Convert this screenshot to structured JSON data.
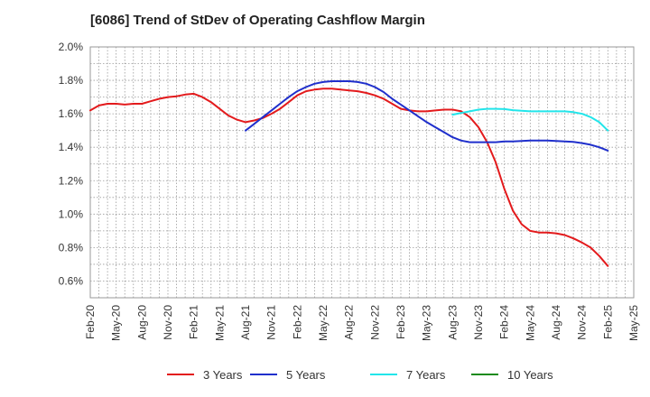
{
  "chart_data": {
    "type": "line",
    "title": "[6086]  Trend of StDev of Operating Cashflow Margin",
    "xlabel": "",
    "ylabel": "",
    "ylim": [
      0.5,
      2.0
    ],
    "yticks": [
      "0.6%",
      "0.8%",
      "1.0%",
      "1.2%",
      "1.4%",
      "1.6%",
      "1.8%",
      "2.0%"
    ],
    "ytick_values": [
      0.6,
      0.8,
      1.0,
      1.2,
      1.4,
      1.6,
      1.8,
      2.0
    ],
    "x_tick_labels": [
      "Feb-20",
      "May-20",
      "Aug-20",
      "Nov-20",
      "Feb-21",
      "May-21",
      "Aug-21",
      "Nov-21",
      "Feb-22",
      "May-22",
      "Aug-22",
      "Nov-22",
      "Feb-23",
      "May-23",
      "Aug-23",
      "Nov-23",
      "Feb-24",
      "May-24",
      "Aug-24",
      "Nov-24",
      "Feb-25",
      "May-25"
    ],
    "grid": true,
    "legend_placement": "bottom",
    "series": [
      {
        "name": "3 Years",
        "color": "#e31a1c",
        "x": [
          "Feb-20",
          "Mar-20",
          "Apr-20",
          "May-20",
          "Jun-20",
          "Jul-20",
          "Aug-20",
          "Sep-20",
          "Oct-20",
          "Nov-20",
          "Dec-20",
          "Jan-21",
          "Feb-21",
          "Mar-21",
          "Apr-21",
          "May-21",
          "Jun-21",
          "Jul-21",
          "Aug-21",
          "Sep-21",
          "Oct-21",
          "Nov-21",
          "Dec-21",
          "Jan-22",
          "Feb-22",
          "Mar-22",
          "Apr-22",
          "May-22",
          "Jun-22",
          "Jul-22",
          "Aug-22",
          "Sep-22",
          "Oct-22",
          "Nov-22",
          "Dec-22",
          "Jan-23",
          "Feb-23",
          "Mar-23",
          "Apr-23",
          "May-23",
          "Jun-23",
          "Jul-23",
          "Aug-23",
          "Sep-23",
          "Oct-23",
          "Nov-23",
          "Dec-23",
          "Jan-24",
          "Feb-24",
          "Mar-24",
          "Apr-24",
          "May-24",
          "Jun-24",
          "Jul-24",
          "Aug-24",
          "Sep-24",
          "Oct-24",
          "Nov-24",
          "Dec-24",
          "Jan-25",
          "Feb-25"
        ],
        "values": [
          1.62,
          1.65,
          1.66,
          1.66,
          1.655,
          1.66,
          1.66,
          1.675,
          1.69,
          1.7,
          1.705,
          1.715,
          1.72,
          1.7,
          1.67,
          1.63,
          1.59,
          1.565,
          1.55,
          1.56,
          1.575,
          1.6,
          1.63,
          1.67,
          1.71,
          1.735,
          1.745,
          1.75,
          1.75,
          1.745,
          1.74,
          1.735,
          1.725,
          1.71,
          1.69,
          1.66,
          1.63,
          1.62,
          1.615,
          1.615,
          1.62,
          1.625,
          1.625,
          1.615,
          1.58,
          1.52,
          1.43,
          1.31,
          1.15,
          1.02,
          0.94,
          0.9,
          0.89,
          0.89,
          0.885,
          0.875,
          0.855,
          0.83,
          0.8,
          0.75,
          0.69
        ]
      },
      {
        "name": "5 Years",
        "color": "#1f2fcc",
        "x": [
          "Feb-21",
          "Mar-21",
          "Apr-21",
          "May-21",
          "Jun-21",
          "Jul-21",
          "Aug-21",
          "Sep-21",
          "Oct-21",
          "Nov-21",
          "Dec-21",
          "Jan-22",
          "Feb-22",
          "Mar-22",
          "Apr-22",
          "May-22",
          "Jun-22",
          "Jul-22",
          "Aug-22",
          "Sep-22",
          "Oct-22",
          "Nov-22",
          "Dec-22",
          "Jan-23",
          "Feb-23",
          "Mar-23",
          "Apr-23",
          "May-23",
          "Jun-23",
          "Jul-23",
          "Aug-23",
          "Sep-23",
          "Oct-23",
          "Nov-23",
          "Dec-23",
          "Jan-24",
          "Feb-24",
          "Mar-24",
          "Apr-24",
          "May-24",
          "Jun-24",
          "Jul-24",
          "Aug-24",
          "Sep-24",
          "Oct-24",
          "Nov-24",
          "Dec-24",
          "Jan-25",
          "Feb-25"
        ],
        "values": [
          null,
          null,
          null,
          null,
          null,
          null,
          1.5,
          1.54,
          1.58,
          1.62,
          1.66,
          1.7,
          1.735,
          1.76,
          1.78,
          1.79,
          1.795,
          1.795,
          1.795,
          1.79,
          1.78,
          1.76,
          1.73,
          1.69,
          1.655,
          1.62,
          1.585,
          1.55,
          1.52,
          1.49,
          1.46,
          1.44,
          1.43,
          1.43,
          1.43,
          1.43,
          1.435,
          1.435,
          1.437,
          1.44,
          1.44,
          1.44,
          1.438,
          1.435,
          1.432,
          1.425,
          1.415,
          1.4,
          1.38
        ]
      },
      {
        "name": "7 Years",
        "color": "#22e5ea",
        "x": [
          "Aug-23",
          "Sep-23",
          "Oct-23",
          "Nov-23",
          "Dec-23",
          "Jan-24",
          "Feb-24",
          "Mar-24",
          "Apr-24",
          "May-24",
          "Jun-24",
          "Jul-24",
          "Aug-24",
          "Sep-24",
          "Oct-24",
          "Nov-24",
          "Dec-24",
          "Jan-25",
          "Feb-25"
        ],
        "values": [
          1.595,
          1.605,
          1.615,
          1.625,
          1.63,
          1.63,
          1.628,
          1.622,
          1.618,
          1.615,
          1.615,
          1.615,
          1.615,
          1.615,
          1.61,
          1.6,
          1.58,
          1.55,
          1.5
        ]
      },
      {
        "name": "10 Years",
        "color": "#1a8a1a",
        "x": [],
        "values": []
      }
    ]
  }
}
